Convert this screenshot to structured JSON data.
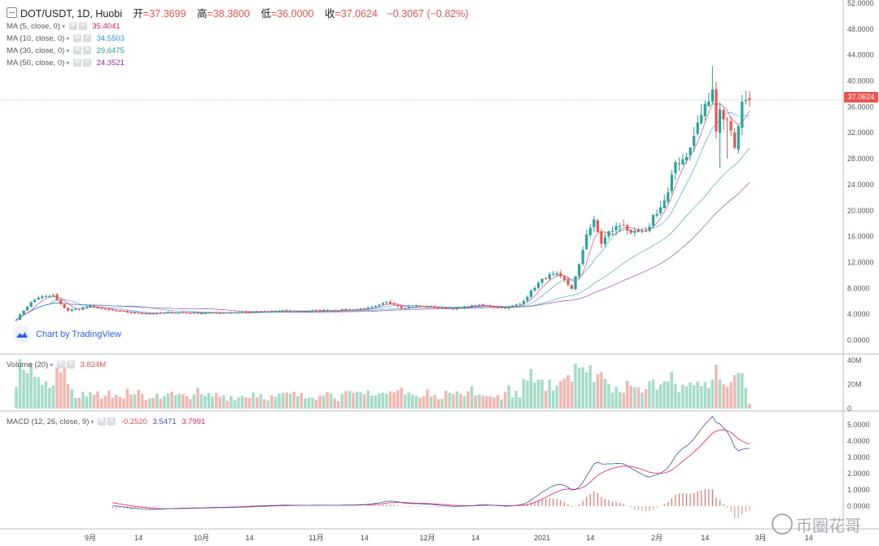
{
  "header": {
    "symbol": "DOT/USDT, 1D, Huobi",
    "open_label": "开",
    "open": "=37.3699",
    "high_label": "高",
    "high": "=38.3800",
    "low_label": "低",
    "low": "=36.0000",
    "close_label": "收",
    "close": "=37.0624",
    "change": "−0.3067 (−0.82%)"
  },
  "legend": {
    "ma5": {
      "label": "MA (5, close, 0)",
      "value": "35.4041",
      "color": "#e91e63"
    },
    "ma10": {
      "label": "MA (10, close, 0)",
      "value": "34.5503",
      "color": "#2196f3"
    },
    "ma30": {
      "label": "MA (30, close, 0)",
      "value": "29.6475",
      "color": "#26a69a"
    },
    "ma50": {
      "label": "MA (50, close, 0)",
      "value": "24.3521",
      "color": "#9c27b0"
    }
  },
  "volume_legend": {
    "label": "Volume (20)",
    "value": "3.824M"
  },
  "macd_legend": {
    "label": "MACD (12, 26, close, 9)",
    "hist": "-0.2520",
    "macd": "3.5471",
    "signal": "3.7991"
  },
  "badge": {
    "text": "Chart by TradingView"
  },
  "price_tag": "37.0624",
  "watermark": "币圈花哥",
  "colors": {
    "up": "#26a69a",
    "down": "#ef5350",
    "vol_up": "#a6dcc8",
    "vol_down": "#f5b7b1",
    "macd": "#3f51b5",
    "signal": "#e91e63",
    "hist_down": "#ef5350"
  },
  "chart_data": {
    "type": "candlestick",
    "price_axis": {
      "ticks": [
        "52.0000",
        "48.0000",
        "44.0000",
        "40.0000",
        "36.0000",
        "32.0000",
        "28.0000",
        "24.0000",
        "20.0000",
        "16.0000",
        "12.0000",
        "8.0000",
        "4.0000",
        "0.0000"
      ],
      "ylim": [
        -2,
        52.5
      ]
    },
    "volume_axis": {
      "ticks": [
        "40M",
        "20M",
        "0"
      ],
      "ylim": [
        0,
        42
      ]
    },
    "macd_axis": {
      "ticks": [
        "5.0000",
        "4.0000",
        "3.0000",
        "2.0000",
        "1.0000",
        "0.0000"
      ],
      "ylim": [
        -1.4,
        5.8
      ]
    },
    "x_labels": [
      {
        "label": "9月",
        "day": 20
      },
      {
        "label": "14",
        "day": 33
      },
      {
        "label": "10月",
        "day": 50
      },
      {
        "label": "14",
        "day": 63
      },
      {
        "label": "11月",
        "day": 81
      },
      {
        "label": "14",
        "day": 94
      },
      {
        "label": "12月",
        "day": 111
      },
      {
        "label": "14",
        "day": 124
      },
      {
        "label": "2021",
        "day": 142
      },
      {
        "label": "14",
        "day": 155
      },
      {
        "label": "2月",
        "day": 173
      },
      {
        "label": "14",
        "day": 186
      },
      {
        "label": "3月",
        "day": 201
      },
      {
        "label": "14",
        "day": 214
      }
    ],
    "anchors": [
      [
        0,
        3.2
      ],
      [
        2,
        4.6
      ],
      [
        4,
        5.8
      ],
      [
        6,
        6.6
      ],
      [
        8,
        6.7
      ],
      [
        10,
        6.9
      ],
      [
        12,
        5.5
      ],
      [
        14,
        4.6
      ],
      [
        17,
        4.9
      ],
      [
        20,
        5.3
      ],
      [
        24,
        4.7
      ],
      [
        28,
        4.4
      ],
      [
        32,
        4.2
      ],
      [
        36,
        4.1
      ],
      [
        42,
        4.3
      ],
      [
        48,
        4.2
      ],
      [
        54,
        4.2
      ],
      [
        60,
        4.3
      ],
      [
        66,
        4.4
      ],
      [
        72,
        4.5
      ],
      [
        78,
        4.5
      ],
      [
        84,
        4.6
      ],
      [
        90,
        4.7
      ],
      [
        96,
        5.0
      ],
      [
        100,
        5.8
      ],
      [
        102,
        5.6
      ],
      [
        104,
        5.0
      ],
      [
        108,
        5.3
      ],
      [
        112,
        5.1
      ],
      [
        116,
        4.9
      ],
      [
        120,
        5.0
      ],
      [
        124,
        5.4
      ],
      [
        128,
        5.2
      ],
      [
        132,
        5.0
      ],
      [
        136,
        5.6
      ],
      [
        138,
        6.8
      ],
      [
        140,
        8.2
      ],
      [
        142,
        9.3
      ],
      [
        144,
        10.0
      ],
      [
        146,
        10.1
      ],
      [
        148,
        9.2
      ],
      [
        150,
        8.0
      ],
      [
        152,
        11.5
      ],
      [
        154,
        16.5
      ],
      [
        156,
        18.3
      ],
      [
        158,
        15.0
      ],
      [
        160,
        16.6
      ],
      [
        162,
        17.4
      ],
      [
        164,
        18.0
      ],
      [
        166,
        16.2
      ],
      [
        168,
        16.6
      ],
      [
        170,
        16.4
      ],
      [
        172,
        19.2
      ],
      [
        174,
        20.5
      ],
      [
        176,
        22.5
      ],
      [
        178,
        27.5
      ],
      [
        180,
        28.0
      ],
      [
        182,
        29.5
      ],
      [
        184,
        33.5
      ],
      [
        186,
        36.0
      ],
      [
        188,
        38.2
      ],
      [
        189,
        33.0
      ],
      [
        190,
        36.0
      ],
      [
        191,
        34.0
      ],
      [
        192,
        34.5
      ],
      [
        193,
        32.0
      ],
      [
        194,
        30.0
      ],
      [
        195,
        33.5
      ],
      [
        196,
        36.5
      ],
      [
        197,
        37.2
      ],
      [
        198,
        37.06
      ]
    ],
    "last": {
      "open": 37.3699,
      "high": 38.38,
      "low": 36.0,
      "close": 37.0624
    },
    "ma_last": {
      "ma5": 35.4041,
      "ma10": 34.5503,
      "ma30": 29.6475,
      "ma50": 24.3521
    },
    "volume_last": 3.824,
    "macd_last": {
      "hist": -0.252,
      "macd": 3.5471,
      "signal": 3.7991
    }
  }
}
